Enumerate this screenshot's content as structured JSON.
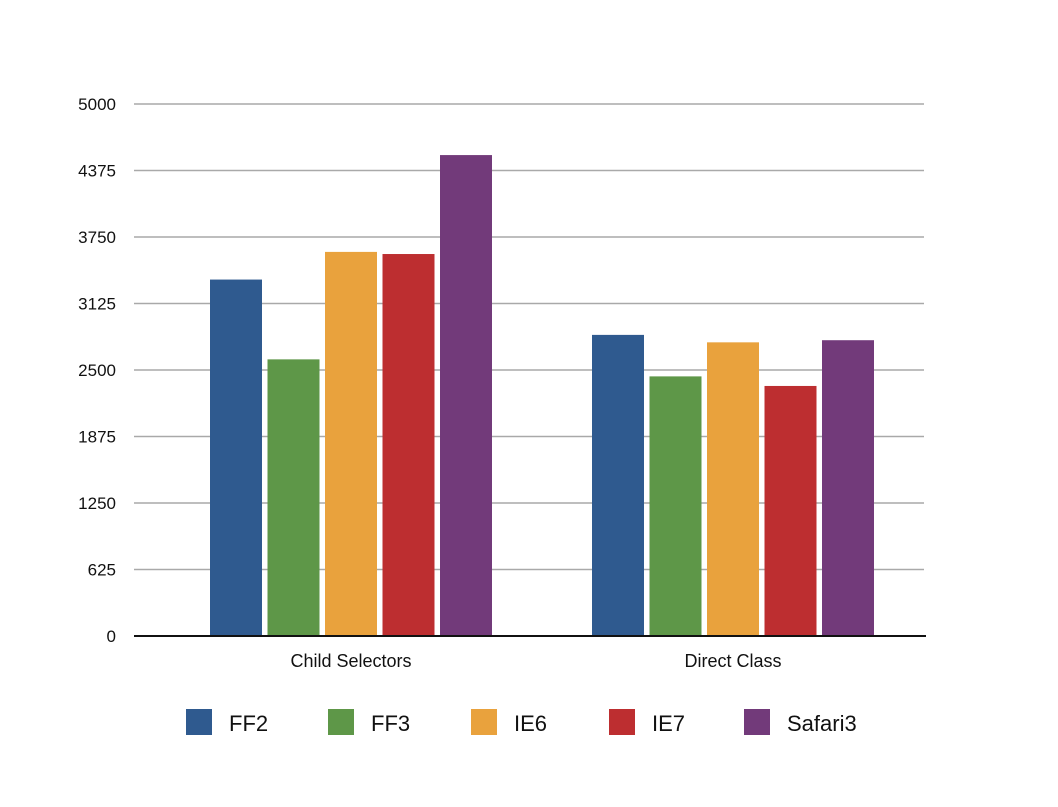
{
  "chart_data": {
    "type": "bar",
    "categories": [
      "Child Selectors",
      "Direct Class"
    ],
    "series": [
      {
        "name": "FF2",
        "color": "#2f5a8f",
        "values": [
          3350,
          2830
        ]
      },
      {
        "name": "FF3",
        "color": "#5e9748",
        "values": [
          2600,
          2440
        ]
      },
      {
        "name": "IE6",
        "color": "#e9a23d",
        "values": [
          3610,
          2760
        ]
      },
      {
        "name": "IE7",
        "color": "#bd2e30",
        "values": [
          3590,
          2350
        ]
      },
      {
        "name": "Safari3",
        "color": "#723a7a",
        "values": [
          4520,
          2780
        ]
      }
    ],
    "y_ticks": [
      "0",
      "625",
      "1250",
      "1875",
      "2500",
      "3125",
      "3750",
      "4375",
      "5000"
    ],
    "ylim": [
      0,
      5000
    ],
    "grid": true,
    "legend_position": "bottom",
    "title": "",
    "xlabel": "",
    "ylabel": ""
  }
}
